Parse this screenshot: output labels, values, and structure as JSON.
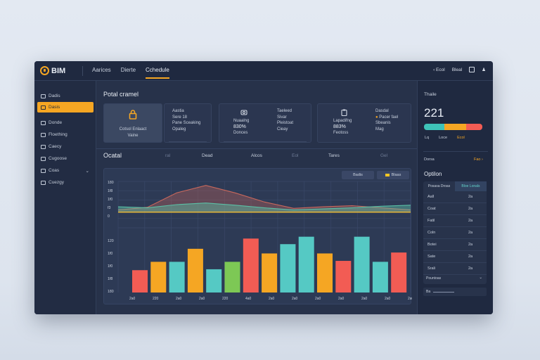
{
  "app": {
    "name": "BIM"
  },
  "nav": {
    "tabs": [
      "Aarices",
      "Dierte",
      "Cchedule"
    ],
    "active": 2
  },
  "top_right": {
    "item1": "Ecol",
    "item2": "Bleal"
  },
  "sidebar": {
    "items": [
      {
        "label": "Dadis"
      },
      {
        "label": "Dasis"
      },
      {
        "label": "Donde"
      },
      {
        "label": "Floething"
      },
      {
        "label": "Caecy"
      },
      {
        "label": "Cugoose"
      },
      {
        "label": "Coas"
      },
      {
        "label": "Cuezgy"
      }
    ],
    "active": 1
  },
  "overview": {
    "title": "Potal cramel",
    "cards": [
      {
        "lines": [
          "Cotsol Enlaact",
          "Vaine"
        ]
      },
      {
        "lines": [
          "Aastia",
          "Sere 18",
          "Pane Sceaking",
          "Opaleg"
        ]
      },
      {
        "lines": [
          "Taeleed",
          "Sivar",
          "Pleistoat",
          "Cieay"
        ],
        "left_lines": [
          "Nuaalng",
          "830%",
          "Donces"
        ]
      },
      {
        "lines": [
          "Dasdal",
          "Pacer fael",
          "Sbeanis",
          "Mag"
        ],
        "left_lines": [
          "Lapadifng",
          "883%",
          "Feotoss"
        ]
      }
    ]
  },
  "chart_section": {
    "title": "Ocatal",
    "cols": [
      "ral",
      "Dead",
      "Alcos",
      "Eol",
      "Tares",
      "Gel"
    ],
    "buttons": {
      "b1": "Badis",
      "b2": "Blaas"
    }
  },
  "chart_data": {
    "type": "area",
    "area_series": [
      {
        "color": "#c8685c",
        "values": [
          44,
          49,
          76,
          90,
          76,
          59,
          47,
          50,
          52,
          48,
          44
        ]
      },
      {
        "color": "#5bbfa5",
        "values": [
          50,
          48,
          54,
          57,
          53,
          48,
          44,
          46,
          48,
          51,
          53
        ]
      },
      {
        "color": "#e0b43a",
        "values": [
          40,
          40,
          40,
          40,
          40,
          40,
          40,
          40,
          40,
          40,
          40
        ]
      }
    ],
    "top_ticks": [
      "180",
      "1f8",
      "1f0",
      "f3",
      "0"
    ],
    "bar_type": "bar",
    "bars": [
      {
        "value": 24,
        "color": "#f25c54"
      },
      {
        "value": 33,
        "color": "#f5a623"
      },
      {
        "value": 33,
        "color": "#55c9c4"
      },
      {
        "value": 47,
        "color": "#f5a623"
      },
      {
        "value": 25,
        "color": "#55c9c4"
      },
      {
        "value": 33,
        "color": "#7dc855"
      },
      {
        "value": 58,
        "color": "#f25c54"
      },
      {
        "value": 42,
        "color": "#f5a623"
      },
      {
        "value": 52,
        "color": "#55c9c4"
      },
      {
        "value": 60,
        "color": "#55c9c4"
      },
      {
        "value": 42,
        "color": "#f5a623"
      },
      {
        "value": 34,
        "color": "#f25c54"
      },
      {
        "value": 60,
        "color": "#55c9c4"
      },
      {
        "value": 33,
        "color": "#55c9c4"
      },
      {
        "value": 43,
        "color": "#f25c54"
      }
    ],
    "bar_ticks": [
      "120",
      "1f0",
      "1f0",
      "1f8",
      "180"
    ],
    "x_ticks": [
      "2a0",
      "220",
      "2a0",
      "2a0",
      "220",
      "4a0",
      "2a0",
      "2a0",
      "2a0",
      "2a0",
      "2a0",
      "2a0",
      "2a0"
    ]
  },
  "right_panel": {
    "label": "Thaile",
    "big": "221",
    "progress": [
      {
        "fraction": 0.35,
        "color": "#3ec3b8"
      },
      {
        "fraction": 0.37,
        "color": "#f5a623"
      },
      {
        "fraction": 0.28,
        "color": "#f25c54"
      }
    ],
    "legend": [
      "Lq",
      "Loce",
      "Ecol"
    ],
    "row_label": "Dorsa",
    "row_link": "Fao",
    "section": "Optilon",
    "list_cols": [
      "Posasa Droas",
      "Bloe Lonals"
    ],
    "rows": [
      {
        "a": "Aall",
        "b": "2a"
      },
      {
        "a": "Coat",
        "b": "2a"
      },
      {
        "a": "Fatil",
        "b": "2a"
      },
      {
        "a": "Coln",
        "b": "2a"
      },
      {
        "a": "Botei",
        "b": "2a"
      },
      {
        "a": "Sate",
        "b": "2a"
      },
      {
        "a": "Srali",
        "b": "2a"
      }
    ],
    "footer_label": "Pountoas",
    "footer_sub": "Ba"
  }
}
